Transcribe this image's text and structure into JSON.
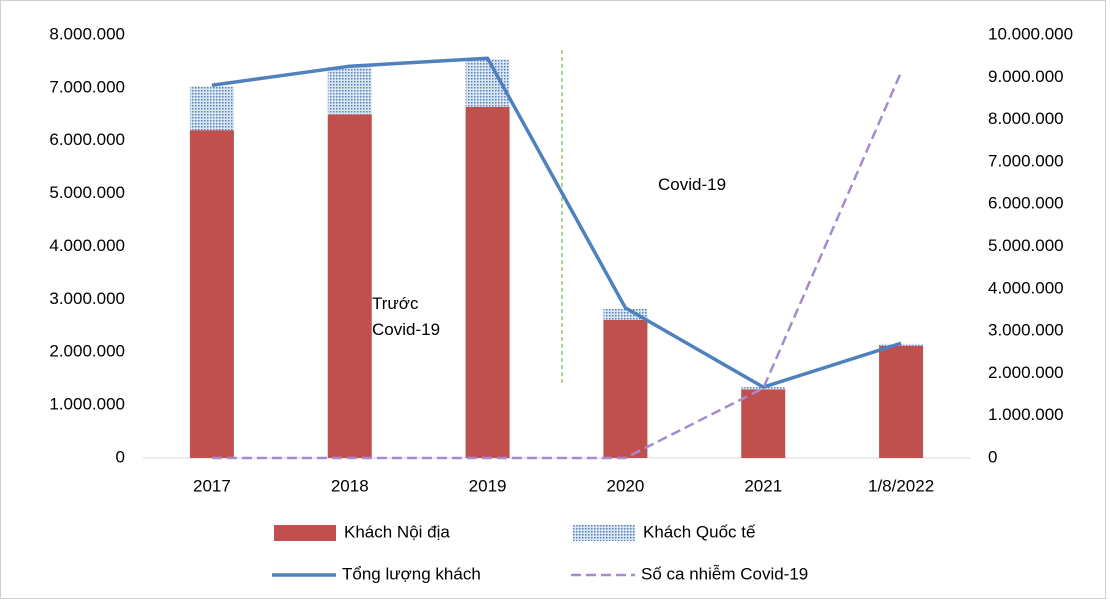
{
  "chart_data": {
    "type": "bar",
    "categories": [
      "2017",
      "2018",
      "2019",
      "2020",
      "2021",
      "1/8/2022"
    ],
    "series": [
      {
        "name": "Khách Nội địa",
        "type": "bar",
        "color": "#c0504d",
        "values": [
          6200000,
          6500000,
          6640000,
          2610000,
          1300000,
          2120000
        ]
      },
      {
        "name": "Khách Quốc tế",
        "type": "bar",
        "color": "#4f81bd",
        "pattern": "dots",
        "values": [
          830000,
          890000,
          900000,
          210000,
          40000,
          40000
        ]
      },
      {
        "name": "Tổng lượng khách",
        "type": "line",
        "color": "#4f81bd",
        "values": [
          7050000,
          7410000,
          7560000,
          2840000,
          1340000,
          2170000
        ]
      },
      {
        "name": "Số ca nhiễm Covid-19",
        "type": "line",
        "color": "#a68bd0",
        "dashed": true,
        "axis": "y2",
        "values": [
          0,
          0,
          0,
          0,
          1650000,
          9120000
        ]
      }
    ],
    "ylim": [
      0,
      8000000
    ],
    "yticks": [
      {
        "value": 0,
        "label": "0"
      },
      {
        "value": 1000000,
        "label": "1.000.000"
      },
      {
        "value": 2000000,
        "label": "2.000.000"
      },
      {
        "value": 3000000,
        "label": "3.000.000"
      },
      {
        "value": 4000000,
        "label": "4.000.000"
      },
      {
        "value": 5000000,
        "label": "5.000.000"
      },
      {
        "value": 6000000,
        "label": "6.000.000"
      },
      {
        "value": 7000000,
        "label": "7.000.000"
      },
      {
        "value": 8000000,
        "label": "8.000.000"
      }
    ],
    "y2lim": [
      0,
      10000000
    ],
    "y2ticks": [
      {
        "value": 0,
        "label": "0"
      },
      {
        "value": 1000000,
        "label": "1.000.000"
      },
      {
        "value": 2000000,
        "label": "2.000.000"
      },
      {
        "value": 3000000,
        "label": "3.000.000"
      },
      {
        "value": 4000000,
        "label": "4.000.000"
      },
      {
        "value": 5000000,
        "label": "5.000.000"
      },
      {
        "value": 6000000,
        "label": "6.000.000"
      },
      {
        "value": 7000000,
        "label": "7.000.000"
      },
      {
        "value": 8000000,
        "label": "8.000.000"
      },
      {
        "value": 9000000,
        "label": "9.000.000"
      },
      {
        "value": 10000000,
        "label": "10.000.000"
      }
    ],
    "annotations": [
      "Trước Covid-19",
      "Covid-19"
    ],
    "legend": "bottom"
  }
}
